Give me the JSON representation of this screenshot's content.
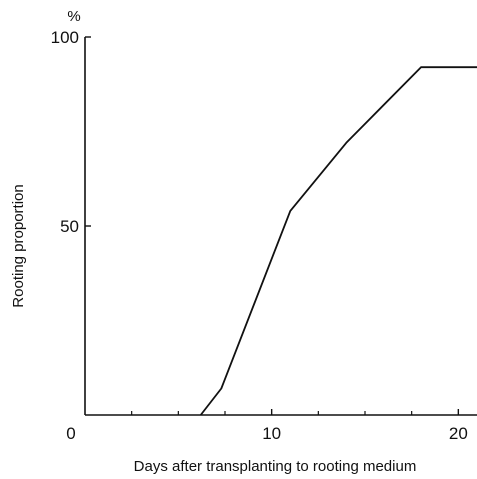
{
  "chart_data": {
    "type": "line",
    "title": "",
    "xlabel": "Days after transplanting to rooting medium",
    "ylabel": "Rooting proportion",
    "yunit": "%",
    "xlim": [
      0,
      21
    ],
    "ylim": [
      0,
      100
    ],
    "x_ticks": [
      0,
      10,
      20
    ],
    "x_tick_labels": [
      "0",
      "10",
      "20"
    ],
    "x_minor_ticks": [
      2.5,
      5,
      7.5,
      12.5,
      15,
      17.5
    ],
    "y_ticks": [
      50,
      100
    ],
    "y_tick_labels": [
      "50",
      "100"
    ],
    "grid": false,
    "legend": "none",
    "line_color": "#111111",
    "series": [
      {
        "x": [
          6.2,
          7.3,
          11.0,
          14.0,
          18.0,
          21.0
        ],
        "y": [
          0,
          7,
          54,
          72,
          92,
          92
        ]
      }
    ]
  }
}
